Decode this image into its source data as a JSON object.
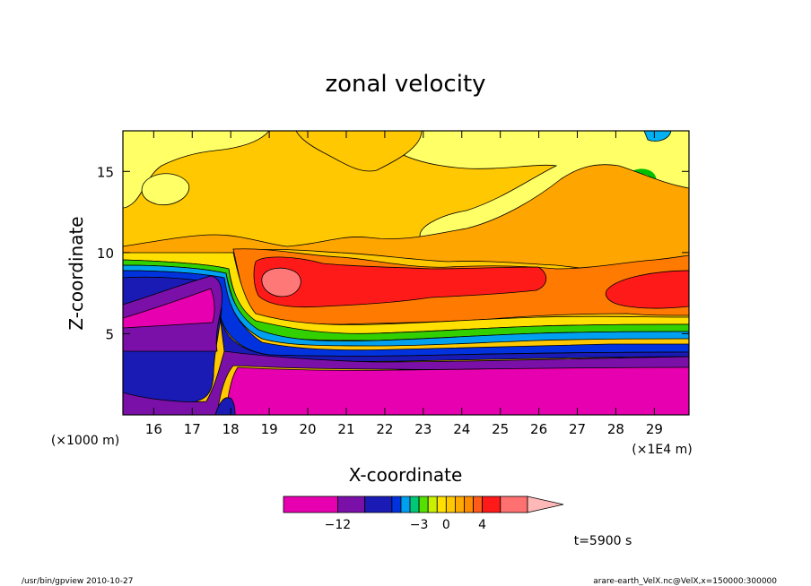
{
  "chart_data": {
    "type": "heatmap",
    "title": "zonal velocity",
    "xlabel": "X-coordinate",
    "ylabel": "Z-coordinate",
    "x_unit_note": "(×1E4 m)",
    "y_unit_note": "(×1000 m)",
    "xlim": [
      15.2,
      29.9
    ],
    "ylim": [
      0,
      17.5
    ],
    "x_ticks": [
      "16",
      "17",
      "18",
      "19",
      "20",
      "21",
      "22",
      "23",
      "24",
      "25",
      "26",
      "27",
      "28",
      "29"
    ],
    "y_ticks": [
      "5",
      "10",
      "15"
    ],
    "time_label": "t=5900 s",
    "colorbar": {
      "ticks": [
        "−12",
        "−3",
        "0",
        "4"
      ],
      "levels": [
        -18,
        -12,
        -9,
        -6,
        -5,
        -4,
        -3,
        -2,
        -1,
        0,
        1,
        2,
        3,
        4,
        6,
        9,
        12
      ],
      "colors": [
        "#e600b0",
        "#7a10a8",
        "#1a1ab4",
        "#0033dd",
        "#00a0f0",
        "#00c878",
        "#55e000",
        "#c8f000",
        "#ffe000",
        "#ffc800",
        "#ffaa00",
        "#ff8c00",
        "#ff5c1a",
        "#ff1a1a",
        "#ff7070",
        "#ffb8b8"
      ]
    },
    "field_features": [
      {
        "region": "lower layer, x 18-30, z 0-3.5",
        "value": "-12 to -18"
      },
      {
        "region": "lower left, x 15.2-18, z 0-9",
        "value": "-6 to -12"
      },
      {
        "region": "jet core, x 18.5-26, z 6.5-9.5",
        "value": "4 to 6"
      },
      {
        "region": "max near x 19.4, z 8.2",
        "value": "6 to 9"
      },
      {
        "region": "upper region, z 10-17.5",
        "value": "0 to 2"
      },
      {
        "region": "green cells near x 27-29, z 12-16",
        "value": "-2 to -3"
      }
    ]
  },
  "footer": {
    "left": "/usr/bin/gpview   2010-10-27",
    "right": "arare-earth_VelX.nc@VelX,x=150000:300000"
  },
  "colors": {
    "magenta": "#e600b0",
    "purple": "#7a10a8",
    "navy": "#1a1ab4",
    "blue": "#0033dd",
    "red": "#ff1a1a",
    "orange": "#ff8c00",
    "gold": "#ffc800",
    "yellow": "#ffff66",
    "green": "#00c000",
    "pink": "#ff7878"
  }
}
